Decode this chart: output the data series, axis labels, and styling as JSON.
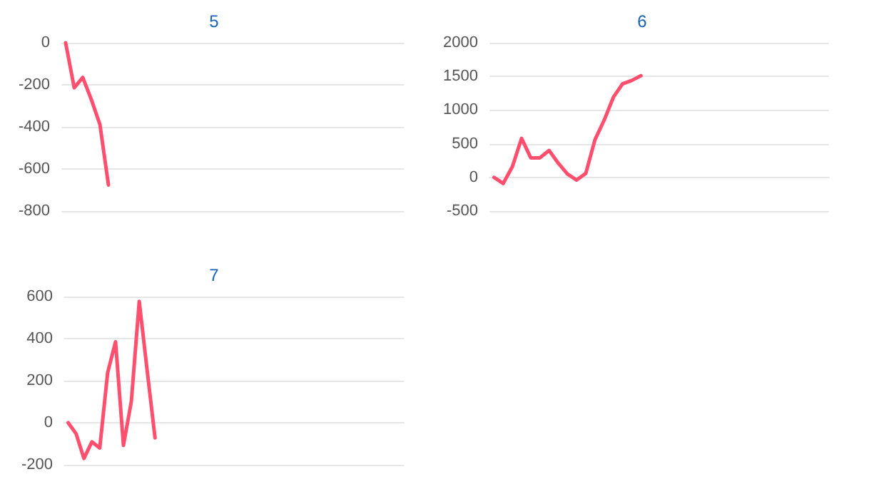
{
  "chart_data": [
    {
      "type": "line",
      "title": "5",
      "categories": [
        null,
        null,
        null,
        null,
        null,
        null,
        null,
        null,
        null,
        null,
        null,
        null,
        null,
        null,
        null,
        null,
        null,
        null,
        null,
        null,
        null,
        null,
        null,
        null,
        null,
        null,
        null,
        null,
        null,
        null,
        null,
        null,
        null,
        null,
        null,
        null,
        null,
        null,
        null,
        null
      ],
      "series": [
        {
          "color": "#ff4f6e",
          "values": [
            0,
            -214,
            -165,
            -270,
            -388,
            -676,
            null,
            null,
            null,
            null,
            null,
            null,
            null,
            null,
            null,
            null,
            null,
            null,
            null,
            null,
            null,
            null,
            null,
            null,
            null,
            null,
            null,
            null,
            null,
            null,
            null,
            null,
            null,
            null,
            null,
            null,
            null,
            null,
            null,
            null
          ]
        }
      ],
      "ylim": [
        -800,
        0
      ],
      "yticks": [
        -800,
        -600,
        -400,
        -200,
        0
      ],
      "grid": "y",
      "tick_labels": "y"
    },
    {
      "type": "line",
      "title": "6",
      "categories": [
        null,
        null,
        null,
        null,
        null,
        null,
        null,
        null,
        null,
        null,
        null,
        null,
        null,
        null,
        null,
        null,
        null,
        null,
        null,
        null,
        null,
        null,
        null,
        null,
        null,
        null,
        null,
        null,
        null,
        null,
        null,
        null,
        null,
        null,
        null,
        null,
        null
      ],
      "series": [
        {
          "color": "#ff4f6e",
          "values": [
            0,
            -90,
            160,
            580,
            290,
            290,
            400,
            210,
            50,
            -40,
            60,
            560,
            850,
            1190,
            1390,
            1440,
            1510,
            null,
            null,
            null,
            null,
            null,
            null,
            null,
            null,
            null,
            null,
            null,
            null,
            null,
            null,
            null,
            null,
            null,
            null,
            null,
            null
          ]
        }
      ],
      "ylim": [
        -500,
        2000
      ],
      "yticks": [
        -500,
        0,
        500,
        1000,
        1500,
        2000
      ],
      "grid": "y",
      "tick_labels": "y"
    },
    {
      "type": "line",
      "title": "7",
      "categories": [
        null,
        null,
        null,
        null,
        null,
        null,
        null,
        null,
        null,
        null,
        null,
        null,
        null,
        null,
        null,
        null,
        null,
        null,
        null,
        null,
        null,
        null,
        null,
        null,
        null,
        null,
        null,
        null,
        null,
        null,
        null,
        null,
        null,
        null,
        null,
        null,
        null,
        null,
        null,
        null,
        null,
        null,
        null
      ],
      "series": [
        {
          "color": "#ff4f6e",
          "values": [
            0,
            -52,
            -170,
            -91,
            -120,
            238,
            385,
            -108,
            102,
            577,
            249,
            -72,
            null,
            null,
            null,
            null,
            null,
            null,
            null,
            null,
            null,
            null,
            null,
            null,
            null,
            null,
            null,
            null,
            null,
            null,
            null,
            null,
            null,
            null,
            null,
            null,
            null,
            null,
            null,
            null,
            null,
            null,
            null
          ]
        }
      ],
      "ylim": [
        -200,
        600
      ],
      "yticks": [
        -200,
        0,
        200,
        400,
        600
      ],
      "grid": "y",
      "tick_labels": "y"
    }
  ]
}
